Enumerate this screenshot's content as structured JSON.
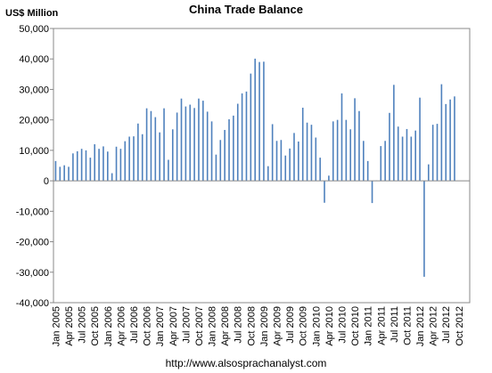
{
  "chart_data": {
    "type": "bar",
    "title": "China Trade Balance",
    "y_label": "US$ Million",
    "annotation": "http://www.alsosprachanalyst.com",
    "categories": [
      "Jan 2005",
      null,
      null,
      "Apr 2005",
      null,
      null,
      "Jul 2005",
      null,
      null,
      "Oct 2005",
      null,
      null,
      "Jan 2006",
      null,
      null,
      "Apr 2006",
      null,
      null,
      "Jul 2006",
      null,
      null,
      "Oct 2006",
      null,
      null,
      "Jan 2007",
      null,
      null,
      "Apr 2007",
      null,
      null,
      "Jul 2007",
      null,
      null,
      "Oct 2007",
      null,
      null,
      "Jan 2008",
      null,
      null,
      "Apr 2008",
      null,
      null,
      "Jul 2008",
      null,
      null,
      "Oct 2008",
      null,
      null,
      "Jan 2009",
      null,
      null,
      "Apr 2009",
      null,
      null,
      "Jul 2009",
      null,
      null,
      "Oct 2009",
      null,
      null,
      "Jan 2010",
      null,
      null,
      "Apr 2010",
      null,
      null,
      "Jul 2010",
      null,
      null,
      "Oct 2010",
      null,
      null,
      "Jan 2011",
      null,
      null,
      "Apr 2011",
      null,
      null,
      "Jul 2011",
      null,
      null,
      "Oct 2011",
      null,
      null,
      "Jan 2012",
      null,
      null,
      "Apr 2012",
      null,
      null,
      "Jul 2012",
      null,
      null,
      "Oct 2012",
      null,
      null
    ],
    "values": [
      6500,
      4600,
      5100,
      4600,
      9000,
      9700,
      10500,
      10000,
      7600,
      12000,
      10500,
      11300,
      9600,
      2500,
      11200,
      10500,
      13000,
      14500,
      14600,
      18800,
      15300,
      23800,
      22900,
      20900,
      15900,
      23800,
      6900,
      16900,
      22400,
      27000,
      24400,
      25000,
      23900,
      27000,
      26300,
      22700,
      19500,
      8600,
      13400,
      16700,
      20200,
      21400,
      25300,
      28700,
      29300,
      35200,
      40100,
      39000,
      39100,
      4800,
      18600,
      13100,
      13400,
      8300,
      10600,
      15700,
      12900,
      24000,
      19100,
      18400,
      14200,
      7600,
      -7200,
      1700,
      19500,
      20000,
      28700,
      20000,
      16900,
      27100,
      22900,
      13100,
      6500,
      -7300,
      100,
      11400,
      13100,
      22300,
      31500,
      17800,
      14500,
      17000,
      14500,
      16500,
      27300,
      -31500,
      5400,
      18400,
      18700,
      31700,
      25200,
      26700,
      27700,
      null,
      null,
      null
    ],
    "color": "#4f81bd",
    "ylim": [
      -40000,
      50000
    ],
    "yticks": [
      {
        "value": -40000,
        "label": "-40,000"
      },
      {
        "value": -30000,
        "label": "-30,000"
      },
      {
        "value": -20000,
        "label": "-20,000"
      },
      {
        "value": -10000,
        "label": "-10,000"
      },
      0,
      {
        "value": 10000,
        "label": "10,000"
      },
      {
        "value": 20000,
        "label": "20,000"
      },
      {
        "value": 30000,
        "label": "30,000"
      },
      {
        "value": 40000,
        "label": "40,000"
      },
      {
        "value": 50000,
        "label": "50,000"
      }
    ],
    "grid": false
  }
}
